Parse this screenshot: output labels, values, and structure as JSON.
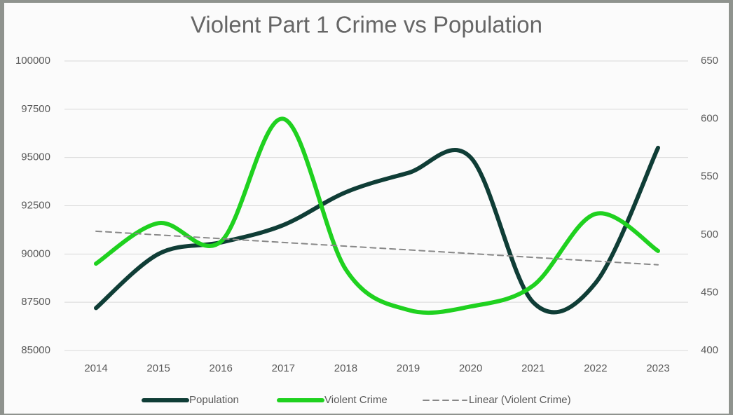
{
  "chart_data": {
    "type": "line",
    "title": "Violent Part 1 Crime vs Population",
    "categories": [
      "2014",
      "2015",
      "2016",
      "2017",
      "2018",
      "2019",
      "2020",
      "2021",
      "2022",
      "2023"
    ],
    "series": [
      {
        "name": "Population",
        "color": "#0f3d36",
        "values": [
          87200,
          90000,
          90600,
          91500,
          93200,
          94200,
          95000,
          87500,
          88500,
          95500
        ]
      },
      {
        "name": "Violent Crime",
        "color": "#1fd11f",
        "axis": "y2",
        "values": [
          475,
          510,
          494,
          600,
          470,
          435,
          438,
          456,
          518,
          486
        ]
      },
      {
        "name": "Linear (Violent Crime)",
        "color": "#888888",
        "axis": "y2",
        "dashed": true,
        "values": [
          503,
          499.8,
          496.6,
          493.3,
          490.1,
          486.9,
          483.7,
          480.4,
          477.2,
          474
        ]
      }
    ],
    "ylim": [
      85000,
      100000
    ],
    "yticks": [
      85000,
      87500,
      90000,
      92500,
      95000,
      97500,
      100000
    ],
    "y2lim": [
      400,
      650
    ],
    "y2ticks": [
      400,
      450,
      500,
      550,
      600,
      650
    ],
    "grid": true,
    "legend": "bottom"
  }
}
